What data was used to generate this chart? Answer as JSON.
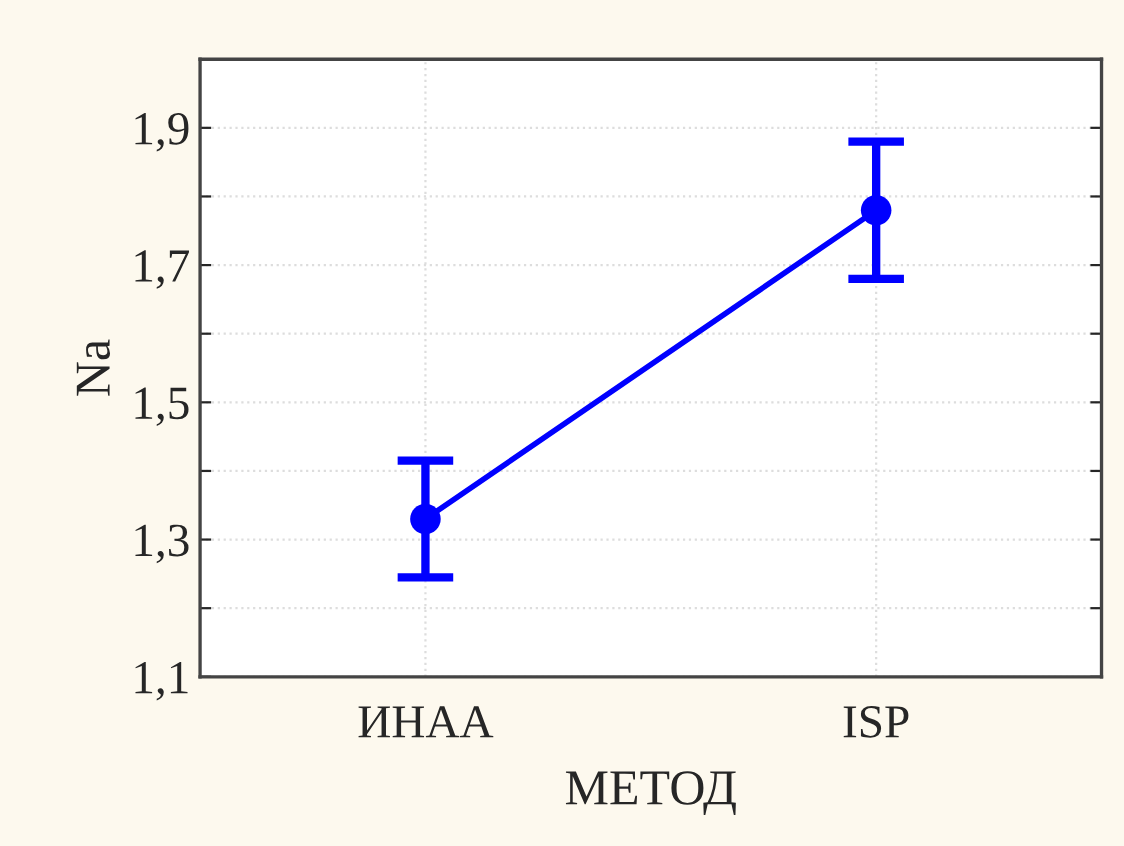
{
  "chart_data": {
    "type": "line",
    "xlabel": "МЕТОД",
    "ylabel": "Na",
    "categories": [
      "ИНАА",
      "ISP"
    ],
    "series": [
      {
        "color": "#0000ff",
        "values": [
          1.33,
          1.78
        ],
        "errors": [
          0.085,
          0.1
        ]
      }
    ],
    "ylim": [
      1.1,
      2.0
    ],
    "yticks": [
      {
        "value": 1.1,
        "label": "1,1"
      },
      {
        "value": 1.2,
        "label": null
      },
      {
        "value": 1.3,
        "label": "1,3"
      },
      {
        "value": 1.4,
        "label": null
      },
      {
        "value": 1.5,
        "label": "1,5"
      },
      {
        "value": 1.6,
        "label": null
      },
      {
        "value": 1.7,
        "label": "1,7"
      },
      {
        "value": 1.8,
        "label": null
      },
      {
        "value": 1.9,
        "label": "1,9"
      }
    ],
    "grid": true,
    "marker": "circle",
    "line_style": "solid",
    "legend": false
  }
}
